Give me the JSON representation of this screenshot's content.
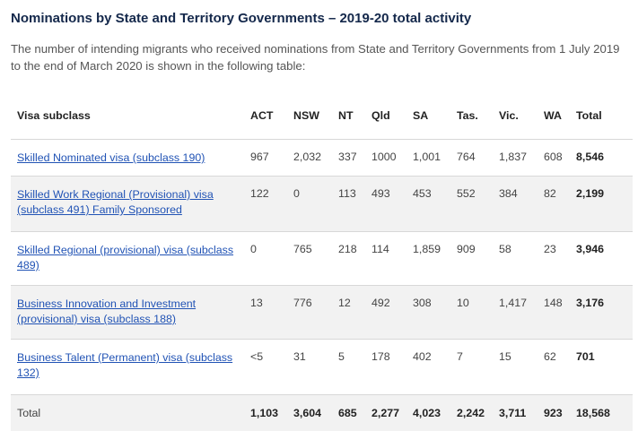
{
  "heading": "Nominations by State and Territory Governments – 2019-20 total activity",
  "intro": "The number of intending migrants who received nominations from State and Territory Governments from 1 July 2019 to the end of March 2020 is shown in the following table:",
  "table": {
    "headers": [
      "Visa subclass",
      "ACT",
      "NSW",
      "NT",
      "Qld",
      "SA",
      "Tas.",
      "Vic.",
      "WA",
      "Total"
    ],
    "rows": [
      {
        "visa": "Skilled Nominated visa (subclass 190)",
        "values": [
          "967",
          "2,032",
          "337",
          "1000",
          "1,001",
          "764",
          "1,837",
          "608"
        ],
        "total": "8,546"
      },
      {
        "visa": "Skilled Work Regional (Provisional) visa (subclass 491) Family Sponsored",
        "values": [
          "122",
          "0",
          "113",
          "493",
          "453",
          "552",
          "384",
          "82"
        ],
        "total": "2,199"
      },
      {
        "visa": "Skilled Regional (provisional) visa (subclass 489)",
        "values": [
          "0",
          "765",
          "218",
          "114",
          "1,859",
          "909",
          "58",
          "23"
        ],
        "total": "3,946"
      },
      {
        "visa": "Business Innovation and Investment (provisional) visa (subclass 188)",
        "values": [
          "13",
          "776",
          "12",
          "492",
          "308",
          "10",
          "1,417",
          "148"
        ],
        "total": "3,176"
      },
      {
        "visa": "Business Talent (Permanent) visa (subclass 132)",
        "values": [
          "<5",
          "31",
          "5",
          "178",
          "402",
          "7",
          "15",
          "62"
        ],
        "total": "701"
      }
    ],
    "footer": {
      "label": "Total",
      "values": [
        "1,103",
        "3,604",
        "685",
        "2,277",
        "4,023",
        "2,242",
        "3,711",
        "923"
      ],
      "total": "18,568"
    }
  }
}
